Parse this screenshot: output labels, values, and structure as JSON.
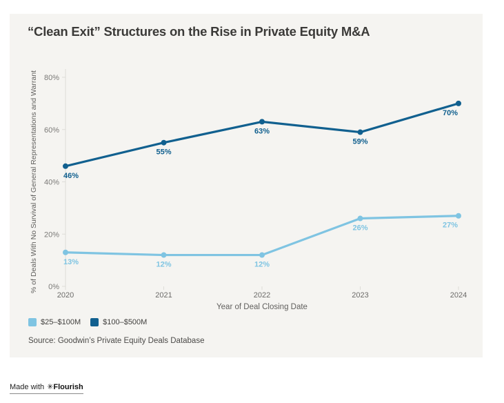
{
  "title": "“Clean Exit” Structures on the Rise in Private Equity M&A",
  "source": "Source: Goodwin’s Private Equity Deals Database",
  "footer": {
    "made_with": "Made with",
    "brand_icon": "✳",
    "brand": "Flourish"
  },
  "colors": {
    "card_background": "#f5f4f1",
    "light_blue": "#7fc4e2",
    "dark_blue": "#11608f"
  },
  "chart_data": {
    "type": "line",
    "title": "“Clean Exit” Structures on the Rise in Private Equity M&A",
    "categories": [
      "2020",
      "2021",
      "2022",
      "2023",
      "2024"
    ],
    "series": [
      {
        "name": "$25–$100M",
        "color": "#7fc4e2",
        "values": [
          13,
          12,
          12,
          26,
          27
        ]
      },
      {
        "name": "$100–$500M",
        "color": "#11608f",
        "values": [
          46,
          55,
          63,
          59,
          70
        ]
      }
    ],
    "xlabel": "Year of Deal Closing Date",
    "ylabel": "% of Deals With No Survival of General Representations and Warrant",
    "ylim": [
      0,
      80
    ],
    "yticks": [
      0,
      20,
      40,
      60,
      80
    ],
    "ytick_suffix": "%",
    "grid": false,
    "legend_position": "bottom-left",
    "point_labels": true,
    "source": "Source: Goodwin’s Private Equity Deals Database"
  }
}
